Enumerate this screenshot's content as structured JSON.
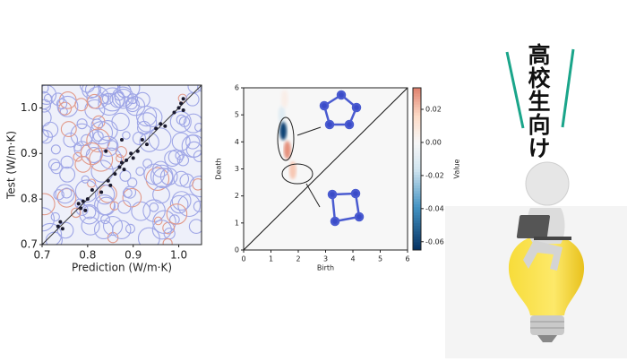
{
  "chart_data": [
    {
      "type": "scatter",
      "xlabel": "Prediction (W/m·K)",
      "ylabel": "Test (W/m·K)",
      "color": "#1a1a2e",
      "x": [
        0.735,
        0.74,
        0.745,
        0.78,
        0.785,
        0.79,
        0.795,
        0.8,
        0.81,
        0.83,
        0.845,
        0.85,
        0.86,
        0.87,
        0.875,
        0.88,
        0.885,
        0.895,
        0.9,
        0.91,
        0.92,
        0.93,
        0.95,
        0.96,
        0.97,
        0.99,
        1.0,
        1.005,
        1.01,
        1.01,
        0.875,
        0.84
      ],
      "y": [
        0.74,
        0.75,
        0.735,
        0.79,
        0.78,
        0.795,
        0.775,
        0.8,
        0.82,
        0.815,
        0.84,
        0.83,
        0.855,
        0.87,
        0.88,
        0.865,
        0.885,
        0.9,
        0.89,
        0.905,
        0.93,
        0.92,
        0.955,
        0.965,
        0.96,
        0.99,
        1.0,
        1.01,
        0.995,
        1.02,
        0.93,
        0.905
      ],
      "xlim": [
        0.7,
        1.05
      ],
      "ylim": [
        0.7,
        1.05
      ],
      "xticks": [
        0.7,
        0.8,
        0.9,
        {
          "value": 1,
          "label": "1.0"
        }
      ],
      "yticks": [
        0.7,
        0.8,
        0.9,
        {
          "value": 1,
          "label": "1.0"
        }
      ]
    },
    {
      "type": "heatmap",
      "xlabel": "Birth",
      "ylabel": "Death",
      "colorbar_label": "Value",
      "xlim": [
        0,
        6
      ],
      "ylim": [
        0,
        6
      ],
      "xticks": [
        0,
        1,
        2,
        3,
        4,
        5,
        6
      ],
      "yticks": [
        0,
        1,
        2,
        3,
        4,
        5,
        6
      ],
      "clim": [
        -0.065,
        0.033
      ],
      "cticks": [
        0.02,
        {
          "value": 0,
          "label": "0.00"
        },
        -0.02,
        -0.04,
        -0.06
      ],
      "features": [
        {
          "x": 1.4,
          "y": 5.0,
          "value": -0.01
        },
        {
          "x": 1.45,
          "y": 4.4,
          "value": -0.06
        },
        {
          "x": 1.6,
          "y": 3.7,
          "value": 0.03
        },
        {
          "x": 1.8,
          "y": 2.95,
          "value": 0.02
        },
        {
          "x": 1.5,
          "y": 5.6,
          "value": 0.005
        }
      ]
    }
  ],
  "illustration": {
    "text": "高校生向け",
    "badge": "高"
  }
}
